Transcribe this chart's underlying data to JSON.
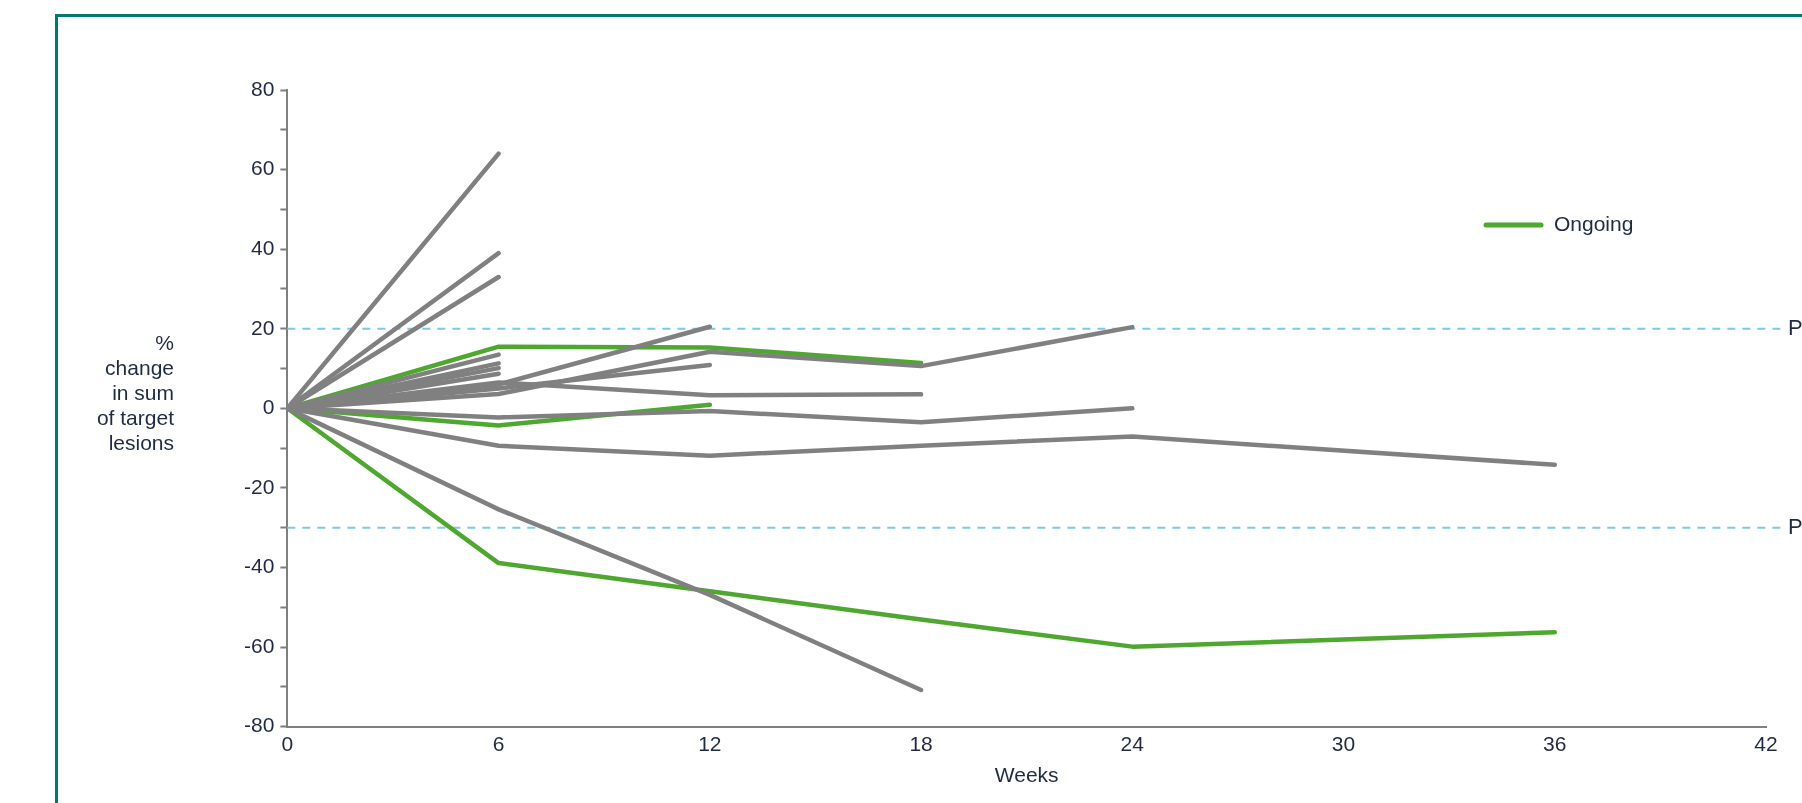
{
  "chart_data": {
    "type": "line",
    "xlabel": "Weeks",
    "ylabel": "% change in sum of target lesions",
    "xlim": [
      0,
      42
    ],
    "xticks": [
      0,
      6,
      12,
      18,
      24,
      30,
      36,
      42
    ],
    "ylim": [
      -80,
      80
    ],
    "yticks": [
      -80,
      {
        "value": -70,
        "label": null
      },
      -60,
      {
        "value": -50,
        "label": null
      },
      -40,
      {
        "value": -30,
        "label": null
      },
      -20,
      {
        "value": -10,
        "label": null
      },
      0,
      {
        "value": 10,
        "label": null
      },
      20,
      {
        "value": 30,
        "label": null
      },
      40,
      {
        "value": 50,
        "label": null
      },
      60,
      {
        "value": 70,
        "label": null
      },
      80
    ],
    "grid": false,
    "legend": "top right",
    "marker": "none",
    "line_style": "solid",
    "ref_lines": [
      {
        "axis": "y",
        "value": 20,
        "label": "P",
        "color": "#7ec8e8",
        "line_style": "dashed"
      },
      {
        "axis": "y",
        "value": -30,
        "label": "P",
        "color": "#7ec8e8",
        "line_style": "dashed"
      }
    ],
    "series": [
      {
        "color": "#808080",
        "x": [
          0,
          6
        ],
        "values": [
          0,
          64
        ]
      },
      {
        "color": "#808080",
        "x": [
          0,
          6
        ],
        "values": [
          0,
          39
        ]
      },
      {
        "color": "#808080",
        "x": [
          0,
          6
        ],
        "values": [
          0,
          33
        ]
      },
      {
        "color": "#808080",
        "x": [
          0,
          6
        ],
        "values": [
          0,
          13.5
        ]
      },
      {
        "color": "#808080",
        "x": [
          0,
          6
        ],
        "values": [
          0,
          11.3
        ]
      },
      {
        "color": "#808080",
        "x": [
          0,
          6
        ],
        "values": [
          0,
          10.1
        ]
      },
      {
        "color": "#808080",
        "x": [
          0,
          6
        ],
        "values": [
          0,
          8.7
        ]
      },
      {
        "color": "#808080",
        "x": [
          0,
          6,
          12
        ],
        "values": [
          0,
          6,
          20.5
        ]
      },
      {
        "color": "#808080",
        "x": [
          0,
          6,
          12,
          18,
          24
        ],
        "values": [
          0,
          3.6,
          14.2,
          10.6,
          20.4
        ]
      },
      {
        "color": "#808080",
        "x": [
          0,
          6,
          12
        ],
        "values": [
          0,
          5,
          10.9
        ]
      },
      {
        "color": "#808080",
        "x": [
          0,
          6,
          12,
          18
        ],
        "values": [
          0,
          6.5,
          3.3,
          3.5
        ]
      },
      {
        "color": "#808080",
        "x": [
          0,
          6,
          12,
          18,
          24
        ],
        "values": [
          0,
          -2.3,
          -0.7,
          -3.5,
          0
        ]
      },
      {
        "color": "#808080",
        "x": [
          0,
          6,
          12,
          18,
          24,
          36
        ],
        "values": [
          0,
          -9.4,
          -11.9,
          -9.4,
          -7.1,
          -14.2
        ]
      },
      {
        "color": "#808080",
        "x": [
          0,
          6,
          12,
          18
        ],
        "values": [
          0,
          -25.4,
          -46.9,
          -70.8
        ]
      },
      {
        "name": "Ongoing",
        "color": "#4ea72e",
        "x": [
          0,
          6,
          12,
          18
        ],
        "values": [
          0,
          15.5,
          15.3,
          11.4
        ]
      },
      {
        "color": "#4ea72e",
        "x": [
          0,
          6,
          12
        ],
        "values": [
          0,
          -4.3,
          0.9
        ]
      },
      {
        "color": "#4ea72e",
        "x": [
          0,
          6,
          12,
          18,
          24,
          36
        ],
        "values": [
          0,
          -38.9,
          -46,
          -53.1,
          -59.9,
          -56.3
        ]
      }
    ]
  }
}
